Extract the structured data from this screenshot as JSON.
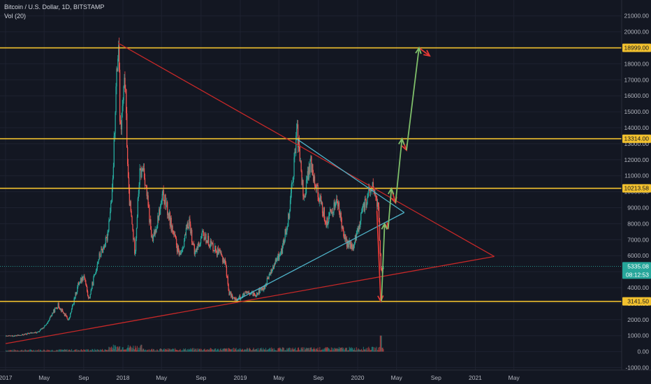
{
  "legend": {
    "symbol_line": "Bitcoin / U.S. Dollar, 1D, BITSTAMP",
    "volume_line": "Vol (20)"
  },
  "colors": {
    "background": "#131722",
    "grid": "#1e2230",
    "level": "#f2c12e",
    "red_line": "#c62828",
    "blue_line": "#4fb3c9",
    "green_arrow": "#7fbf6a",
    "red_arrow": "#e53935",
    "candle_up": "#26a69a",
    "candle_down": "#ef5350",
    "axis_text": "#b2b5be",
    "price_tag_bg": "#26a69a",
    "time_tag_bg": "#26a69a"
  },
  "chart_data": {
    "type": "candlestick",
    "y_ticks": [
      "21000.00",
      "20000.00",
      "19000.00",
      "18000.00",
      "17000.00",
      "16000.00",
      "15000.00",
      "14000.00",
      "13000.00",
      "12000.00",
      "11000.00",
      "10000.00",
      "9000.00",
      "8000.00",
      "7000.00",
      "6000.00",
      "5000.00",
      "4000.00",
      "3000.00",
      "2000.00",
      "1000.00",
      "0.00",
      "-1000.00"
    ],
    "x_ticks": [
      "2017",
      "May",
      "Sep",
      "2018",
      "May",
      "Sep",
      "2019",
      "May",
      "Sep",
      "2020",
      "May",
      "Sep",
      "2021",
      "May"
    ],
    "ylim": [
      -1000,
      21000
    ],
    "levels": [
      {
        "value": 18999,
        "label": "18999.00"
      },
      {
        "value": 13314,
        "label": "13314.00"
      },
      {
        "value": 10213.58,
        "label": "10213.58"
      },
      {
        "value": 3141.5,
        "label": "3141.50"
      }
    ],
    "last_price": {
      "value": 5335,
      "label": "5335.08",
      "countdown": "08:12:53"
    },
    "price_path": [
      [
        "2017-01-01",
        960
      ],
      [
        "2017-02-15",
        1020
      ],
      [
        "2017-03-15",
        1150
      ],
      [
        "2017-04-10",
        1200
      ],
      [
        "2017-05-10",
        1750
      ],
      [
        "2017-05-25",
        2400
      ],
      [
        "2017-06-12",
        2900
      ],
      [
        "2017-07-15",
        1950
      ],
      [
        "2017-08-15",
        4300
      ],
      [
        "2017-09-01",
        4800
      ],
      [
        "2017-09-15",
        3200
      ],
      [
        "2017-10-15",
        5800
      ],
      [
        "2017-11-10",
        7000
      ],
      [
        "2017-11-28",
        10000
      ],
      [
        "2017-12-08",
        16000
      ],
      [
        "2017-12-17",
        19300
      ],
      [
        "2017-12-22",
        13500
      ],
      [
        "2018-01-06",
        17000
      ],
      [
        "2018-01-17",
        10000
      ],
      [
        "2018-02-06",
        6200
      ],
      [
        "2018-02-20",
        11000
      ],
      [
        "2018-03-05",
        11500
      ],
      [
        "2018-04-01",
        6800
      ],
      [
        "2018-05-05",
        9800
      ],
      [
        "2018-06-25",
        5900
      ],
      [
        "2018-07-25",
        8200
      ],
      [
        "2018-08-10",
        6100
      ],
      [
        "2018-09-05",
        7300
      ],
      [
        "2018-10-15",
        6400
      ],
      [
        "2018-11-14",
        5600
      ],
      [
        "2018-11-25",
        3700
      ],
      [
        "2018-12-15",
        3200
      ],
      [
        "2019-01-15",
        3600
      ],
      [
        "2019-02-15",
        3600
      ],
      [
        "2019-03-15",
        4000
      ],
      [
        "2019-04-05",
        5000
      ],
      [
        "2019-05-10",
        6400
      ],
      [
        "2019-05-30",
        8500
      ],
      [
        "2019-06-26",
        13800
      ],
      [
        "2019-07-16",
        9500
      ],
      [
        "2019-08-06",
        11900
      ],
      [
        "2019-09-01",
        9700
      ],
      [
        "2019-09-25",
        8000
      ],
      [
        "2019-10-26",
        9500
      ],
      [
        "2019-11-25",
        6800
      ],
      [
        "2019-12-17",
        6500
      ],
      [
        "2020-01-15",
        8800
      ],
      [
        "2020-02-13",
        10400
      ],
      [
        "2020-03-05",
        8900
      ],
      [
        "2020-03-12",
        5000
      ],
      [
        "2020-03-16",
        4900
      ],
      [
        "2020-03-20",
        5335
      ]
    ],
    "volume_max": 1000
  },
  "drawings": {
    "red_lines": [
      {
        "from": [
          "2017-12-17",
          19300
        ],
        "to": [
          "2021-03-01",
          5950
        ]
      },
      {
        "from": [
          "2017-01-01",
          500
        ],
        "to": [
          "2021-03-01",
          5950
        ]
      }
    ],
    "blue_lines": [
      {
        "from": [
          "2019-06-26",
          13300
        ],
        "to": [
          "2020-05-25",
          8700
        ]
      },
      {
        "from": [
          "2018-12-20",
          3200
        ],
        "to": [
          "2020-05-25",
          8700
        ]
      }
    ],
    "green_arrows": [
      {
        "from": [
          "2020-03-15",
          3141
        ],
        "to": [
          "2020-03-25",
          8000
        ]
      },
      {
        "from": [
          "2020-04-05",
          7700
        ],
        "to": [
          "2020-04-15",
          10200
        ]
      },
      {
        "from": [
          "2020-04-28",
          9300
        ],
        "to": [
          "2020-05-18",
          13314
        ]
      },
      {
        "from": [
          "2020-06-01",
          12600
        ],
        "to": [
          "2020-07-10",
          18999
        ]
      }
    ],
    "red_arrows": [
      {
        "from": [
          "2020-03-01",
          8800
        ],
        "to": [
          "2020-03-13",
          3141
        ]
      },
      {
        "from": [
          "2020-03-25",
          8000
        ],
        "to": [
          "2020-04-05",
          7700
        ]
      },
      {
        "from": [
          "2020-04-15",
          10200
        ],
        "to": [
          "2020-04-28",
          9300
        ]
      },
      {
        "from": [
          "2020-05-18",
          13314
        ],
        "to": [
          "2020-06-01",
          12600
        ]
      },
      {
        "from": [
          "2020-07-10",
          18999
        ],
        "to": [
          "2020-08-12",
          18500
        ]
      }
    ]
  }
}
